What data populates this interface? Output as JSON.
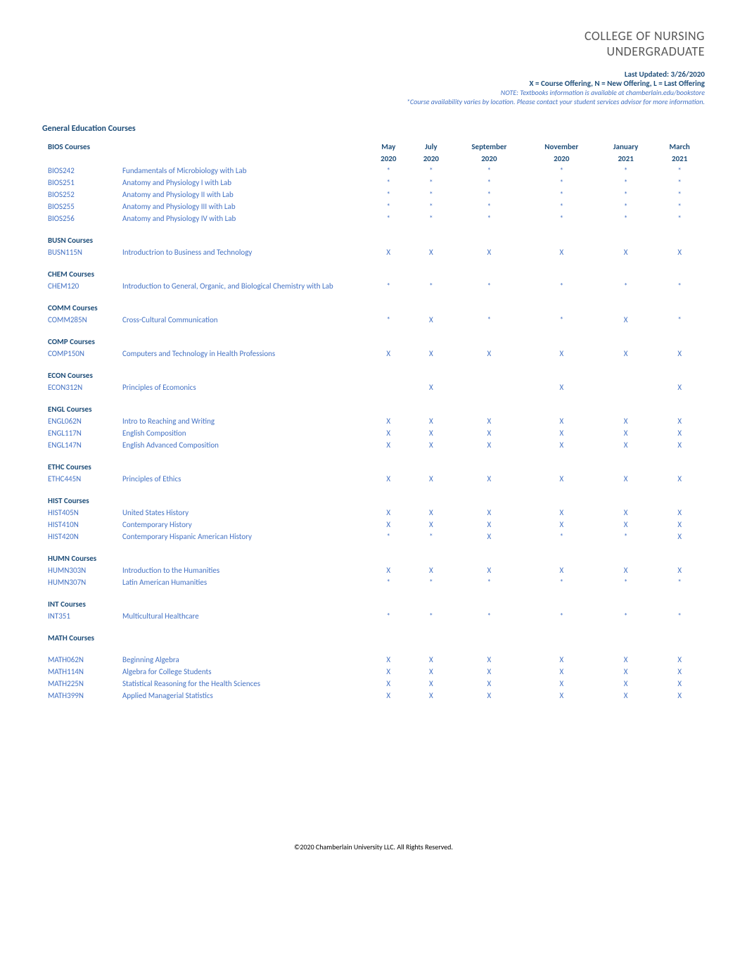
{
  "header": {
    "title1": "COLLEGE OF NURSING",
    "title2": "UNDERGRADUATE",
    "updated": "Last Updated: 3/26/2020",
    "legend": "X = Course Offering,  N = New Offering,  L = Last Offering",
    "note1": "NOTE: Textbooks information is available at chamberlain.edu/bookstore",
    "note2": "*Course availability varies by location.  Please contact your student services advisor for more information."
  },
  "section_title": "General Education Courses",
  "columns": {
    "months": [
      "May",
      "July",
      "September",
      "November",
      "January",
      "March"
    ],
    "years": [
      "2020",
      "2020",
      "2020",
      "2020",
      "2021",
      "2021"
    ]
  },
  "groups": [
    {
      "title": "BIOS Courses",
      "rows": [
        {
          "code": "BIOS242",
          "name": "Fundamentals of Microbiology with Lab",
          "vals": [
            "*",
            "*",
            "*",
            "*",
            "*",
            "*"
          ]
        },
        {
          "code": "BIOS251",
          "name": "Anatomy and Physiology I with Lab",
          "vals": [
            "*",
            "*",
            "*",
            "*",
            "*",
            "*"
          ]
        },
        {
          "code": "BIOS252",
          "name": "Anatomy and Physiology II with Lab",
          "vals": [
            "*",
            "*",
            "*",
            "*",
            "*",
            "*"
          ]
        },
        {
          "code": "BIOS255",
          "name": "Anatomy and Physiology III with Lab",
          "vals": [
            "*",
            "*",
            "*",
            "*",
            "*",
            "*"
          ]
        },
        {
          "code": "BIOS256",
          "name": "Anatomy and Physiology IV with Lab",
          "vals": [
            "*",
            "*",
            "*",
            "*",
            "*",
            "*"
          ]
        }
      ]
    },
    {
      "title": "BUSN Courses",
      "rows": [
        {
          "code": "BUSN115N",
          "name": "Introductrion to Business and Technology",
          "vals": [
            "X",
            "X",
            "X",
            "X",
            "X",
            "X"
          ]
        }
      ]
    },
    {
      "title": "CHEM Courses",
      "rows": [
        {
          "code": "CHEM120",
          "name": "Introduction to General, Organic, and Biological Chemistry with Lab",
          "vals": [
            "*",
            "*",
            "*",
            "*",
            "*",
            "*"
          ]
        }
      ]
    },
    {
      "title": "COMM Courses",
      "rows": [
        {
          "code": "COMM285N",
          "name": "Cross-Cultural Communication",
          "vals": [
            "*",
            "X",
            "*",
            "*",
            "X",
            "*"
          ]
        }
      ]
    },
    {
      "title": "COMP Courses",
      "rows": [
        {
          "code": "COMP150N",
          "name": "Computers and Technology in Health Professions",
          "vals": [
            "X",
            "X",
            "X",
            "X",
            "X",
            "X"
          ]
        }
      ]
    },
    {
      "title": "ECON Courses",
      "rows": [
        {
          "code": "ECON312N",
          "name": "Principles of Ecomonics",
          "vals": [
            "",
            "X",
            "",
            "X",
            "",
            "X"
          ]
        }
      ]
    },
    {
      "title": "ENGL Courses",
      "rows": [
        {
          "code": "ENGL062N",
          "name": "Intro to Reaching and Writing",
          "vals": [
            "X",
            "X",
            "X",
            "X",
            "X",
            "X"
          ]
        },
        {
          "code": "ENGL117N",
          "name": "English Composition",
          "vals": [
            "X",
            "X",
            "X",
            "X",
            "X",
            "X"
          ]
        },
        {
          "code": "ENGL147N",
          "name": "English Advanced Composition",
          "vals": [
            "X",
            "X",
            "X",
            "X",
            "X",
            "X"
          ]
        }
      ]
    },
    {
      "title": "ETHC Courses",
      "rows": [
        {
          "code": "ETHC445N",
          "name": "Principles of Ethics",
          "vals": [
            "X",
            "X",
            "X",
            "X",
            "X",
            "X"
          ]
        }
      ]
    },
    {
      "title": "HIST Courses",
      "rows": [
        {
          "code": "HIST405N",
          "name": "United States History",
          "vals": [
            "X",
            "X",
            "X",
            "X",
            "X",
            "X"
          ]
        },
        {
          "code": "HIST410N",
          "name": "Contemporary History",
          "vals": [
            "X",
            "X",
            "X",
            "X",
            "X",
            "X"
          ]
        },
        {
          "code": "HIST420N",
          "name": "Contemporary Hispanic American History",
          "vals": [
            "*",
            "*",
            "X",
            "*",
            "*",
            "X"
          ]
        }
      ]
    },
    {
      "title": "HUMN Courses",
      "rows": [
        {
          "code": "HUMN303N",
          "name": "Introduction to the Humanities",
          "vals": [
            "X",
            "X",
            "X",
            "X",
            "X",
            "X"
          ]
        },
        {
          "code": "HUMN307N",
          "name": "Latin American Humanities",
          "vals": [
            "*",
            "*",
            "*",
            "*",
            "*",
            "*"
          ]
        }
      ]
    },
    {
      "title": "INT Courses",
      "rows": [
        {
          "code": "INT351",
          "name": "Multicultural Healthcare",
          "vals": [
            "*",
            "*",
            "*",
            "*",
            "*",
            "*"
          ]
        }
      ]
    },
    {
      "title": "MATH Courses",
      "rows": [
        {
          "code": "MATH062N",
          "name": "Beginning Algebra",
          "vals": [
            "X",
            "X",
            "X",
            "X",
            "X",
            "X"
          ]
        },
        {
          "code": "MATH114N",
          "name": "Algebra for College Students",
          "vals": [
            "X",
            "X",
            "X",
            "X",
            "X",
            "X"
          ]
        },
        {
          "code": "MATH225N",
          "name": "Statistical Reasoning for the Health Sciences",
          "vals": [
            "X",
            "X",
            "X",
            "X",
            "X",
            "X"
          ]
        },
        {
          "code": "MATH399N",
          "name": "Applied Managerial Statistics",
          "vals": [
            "X",
            "X",
            "X",
            "X",
            "X",
            "X"
          ]
        }
      ],
      "spacer_before_rows": true
    }
  ],
  "footer": "©2020 Chamberlain University LLC. All Rights Reserved.",
  "style": {
    "background_color": "#ffffff",
    "title_color": "#595959",
    "label_color": "#1f4e79",
    "data_color": "#4472c4",
    "note_color": "#4472c4",
    "footer_color": "#000000",
    "title_fontsize": 18,
    "body_fontsize": 11,
    "note_fontsize": 10,
    "col_code_width": 90,
    "col_name_width": 340
  }
}
